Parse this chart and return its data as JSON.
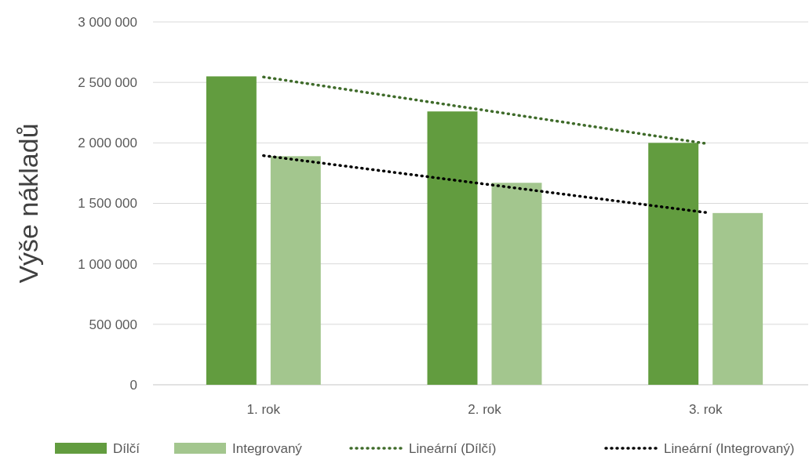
{
  "chart_data": {
    "type": "bar",
    "ylabel": "Výše nákladů",
    "categories": [
      "1. rok",
      "2. rok",
      "3. rok"
    ],
    "series": [
      {
        "name": "Dílčí",
        "color": "#629c3f",
        "values": [
          2550000,
          2260000,
          2000000
        ]
      },
      {
        "name": "Integrovaný",
        "color": "#a3c68e",
        "values": [
          1890000,
          1670000,
          1420000
        ]
      },
      {
        "name": "Lineární (Dílčí)",
        "type": "line",
        "color": "#3f6b2a",
        "line_style": "dotted",
        "values": [
          2545000,
          2270000,
          1995000
        ]
      },
      {
        "name": "Lineární (Integrovaný)",
        "type": "line",
        "color": "#000000",
        "line_style": "dotted",
        "values": [
          1895000,
          1660000,
          1425000
        ]
      }
    ],
    "ylim": [
      0,
      3000000
    ],
    "yticks": [
      {
        "value": 0,
        "label": "0"
      },
      {
        "value": 500000,
        "label": "500 000"
      },
      {
        "value": 1000000,
        "label": "1 000 000"
      },
      {
        "value": 1500000,
        "label": "1 500 000"
      },
      {
        "value": 2000000,
        "label": "2 000 000"
      },
      {
        "value": 2500000,
        "label": "2 500 000"
      },
      {
        "value": 3000000,
        "label": "3 000 000"
      }
    ],
    "grid": "y",
    "legend": "bottom",
    "marker": "none"
  }
}
